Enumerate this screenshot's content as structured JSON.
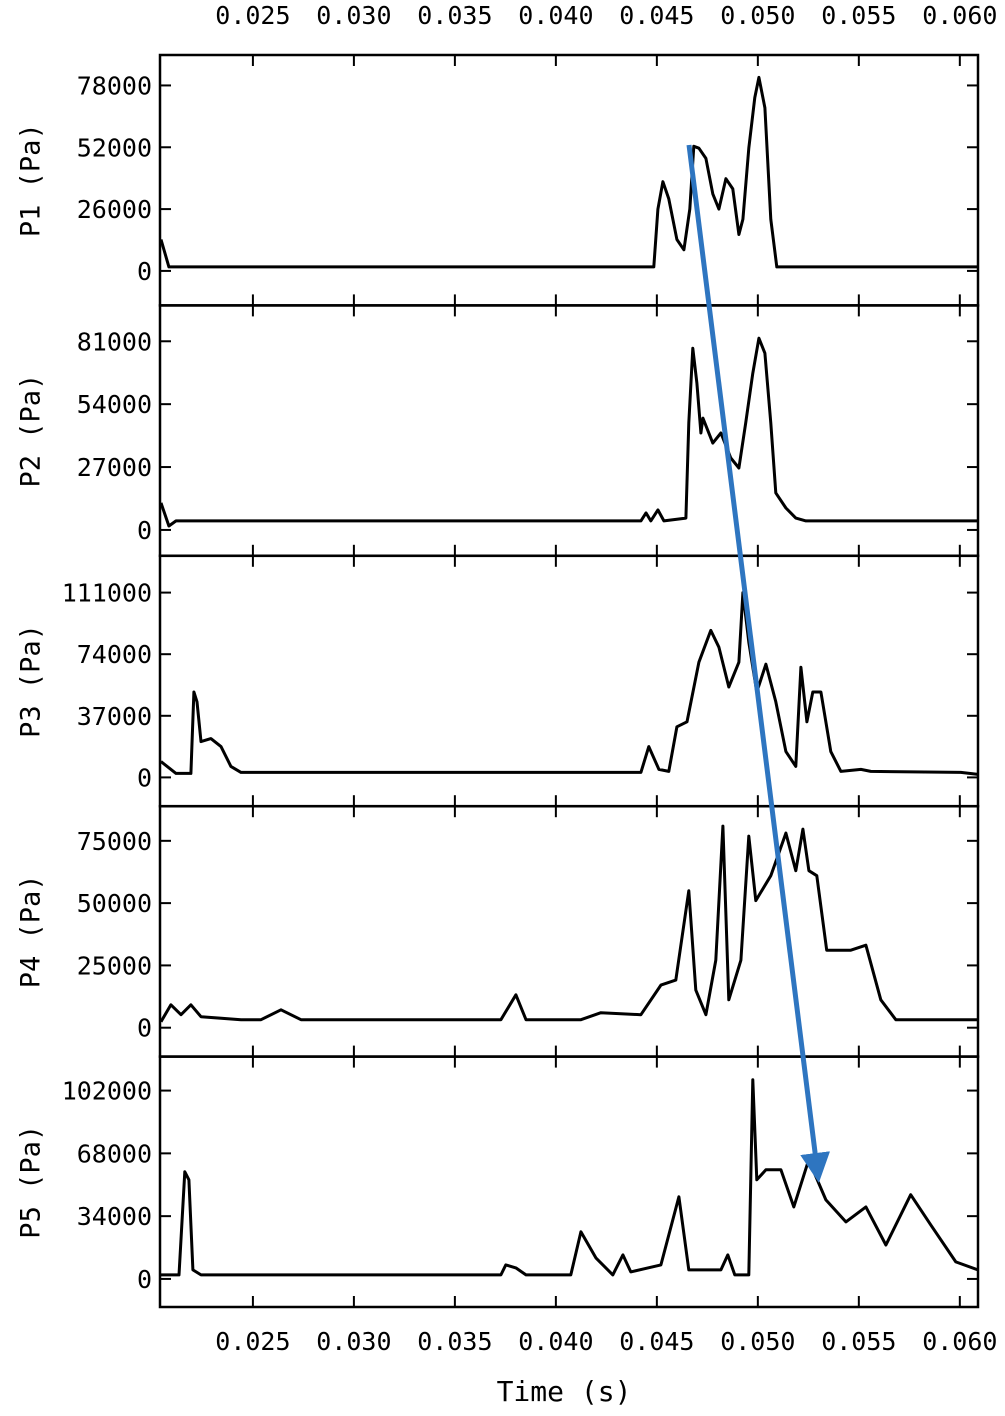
{
  "chart_data": [
    {
      "type": "line",
      "ylabel": "P1 (Pa)",
      "color": "#000000",
      "xlim": [
        0.0204,
        0.0609
      ],
      "xticks": [
        {
          "value": 0.025,
          "label": "0.025"
        },
        {
          "value": 0.03,
          "label": "0.030"
        },
        {
          "value": 0.035,
          "label": "0.035"
        },
        {
          "value": 0.04,
          "label": "0.040"
        },
        {
          "value": 0.045,
          "label": "0.045"
        },
        {
          "value": 0.05,
          "label": "0.050"
        },
        {
          "value": 0.055,
          "label": "0.055"
        },
        {
          "value": 0.06,
          "label": "0.060"
        }
      ],
      "ylim": [
        -14500,
        90800
      ],
      "yticks": [
        0,
        26000,
        52000,
        78000
      ],
      "x": [
        0.02045,
        0.02084,
        0.04485,
        0.04505,
        0.0453,
        0.04559,
        0.04599,
        0.04634,
        0.04663,
        0.04683,
        0.04708,
        0.04743,
        0.04777,
        0.04807,
        0.04842,
        0.04876,
        0.04906,
        0.04926,
        0.04955,
        0.04985,
        0.05005,
        0.05035,
        0.05064,
        0.05094,
        0.0609
      ],
      "values": [
        13200,
        1700,
        1700,
        26000,
        37500,
        30300,
        13200,
        8900,
        26000,
        52400,
        51600,
        47300,
        32400,
        26000,
        38800,
        34500,
        15300,
        21700,
        51600,
        72900,
        81400,
        68600,
        21700,
        1700,
        1700
      ]
    },
    {
      "type": "line",
      "ylabel": "P2 (Pa)",
      "color": "#000000",
      "xlim": [
        0.0204,
        0.0609
      ],
      "xticks": [
        0.025,
        0.03,
        0.035,
        0.04,
        0.045,
        0.05,
        0.055,
        0.06
      ],
      "ylim": [
        -11100,
        96400
      ],
      "yticks": [
        0,
        27000,
        54000,
        81000
      ],
      "x": [
        0.02045,
        0.02084,
        0.02119,
        0.04421,
        0.04446,
        0.0447,
        0.04505,
        0.04535,
        0.04644,
        0.04658,
        0.04678,
        0.04698,
        0.04718,
        0.04728,
        0.04777,
        0.04817,
        0.04866,
        0.04906,
        0.0494,
        0.04975,
        0.05005,
        0.05035,
        0.05064,
        0.05089,
        0.05139,
        0.05188,
        0.05238,
        0.0609
      ],
      "values": [
        11600,
        1700,
        3900,
        3900,
        7300,
        3900,
        8600,
        3900,
        5100,
        45900,
        78000,
        63000,
        41600,
        48000,
        37300,
        41600,
        30900,
        26600,
        45900,
        67300,
        82300,
        75900,
        45900,
        15900,
        9400,
        5100,
        3900,
        3900
      ]
    },
    {
      "type": "line",
      "ylabel": "P3 (Pa)",
      "color": "#000000",
      "xlim": [
        0.0204,
        0.0609
      ],
      "xticks": [
        0.025,
        0.03,
        0.035,
        0.04,
        0.045,
        0.05,
        0.055,
        0.06
      ],
      "ylim": [
        -17300,
        133100
      ],
      "yticks": [
        0,
        37000,
        74000,
        111000
      ],
      "x": [
        0.02045,
        0.02119,
        0.02193,
        0.02208,
        0.02223,
        0.02243,
        0.02292,
        0.02342,
        0.02391,
        0.02441,
        0.04025,
        0.04421,
        0.0446,
        0.0451,
        0.04559,
        0.04599,
        0.04649,
        0.04708,
        0.04767,
        0.04807,
        0.04856,
        0.04906,
        0.04926,
        0.04955,
        0.04995,
        0.0504,
        0.05089,
        0.05139,
        0.05188,
        0.05213,
        0.05243,
        0.05272,
        0.05312,
        0.05361,
        0.05411,
        0.0551,
        0.05559,
        0.06005,
        0.0609
      ],
      "values": [
        9500,
        2400,
        2400,
        51300,
        45400,
        21500,
        23300,
        18500,
        6600,
        3000,
        3000,
        3000,
        18500,
        4800,
        3600,
        30400,
        33400,
        69200,
        88300,
        78200,
        54300,
        69200,
        111000,
        81200,
        51300,
        68000,
        45400,
        15500,
        6600,
        66200,
        33400,
        51300,
        51300,
        15500,
        3600,
        4800,
        3600,
        3000,
        1800
      ]
    },
    {
      "type": "line",
      "ylabel": "P4 (Pa)",
      "color": "#000000",
      "xlim": [
        0.0204,
        0.0609
      ],
      "xticks": [
        0.025,
        0.03,
        0.035,
        0.04,
        0.045,
        0.05,
        0.055,
        0.06
      ],
      "ylim": [
        -11600,
        88900
      ],
      "yticks": [
        0,
        25000,
        50000,
        75000
      ],
      "x": [
        0.02045,
        0.02094,
        0.02144,
        0.02193,
        0.02243,
        0.02441,
        0.0254,
        0.02639,
        0.02738,
        0.03728,
        0.03802,
        0.03852,
        0.04124,
        0.04223,
        0.04421,
        0.0452,
        0.04594,
        0.04658,
        0.04693,
        0.04743,
        0.04792,
        0.04827,
        0.04856,
        0.04916,
        0.04955,
        0.0499,
        0.05064,
        0.05139,
        0.05188,
        0.05223,
        0.05253,
        0.05292,
        0.05341,
        0.0546,
        0.05535,
        0.05609,
        0.05683,
        0.0609
      ],
      "values": [
        2400,
        9200,
        5200,
        9200,
        4400,
        3200,
        3200,
        7200,
        3200,
        3200,
        13200,
        3200,
        3200,
        6000,
        5200,
        17100,
        19100,
        55000,
        15100,
        5200,
        27100,
        80900,
        11200,
        27100,
        76900,
        51000,
        61000,
        78100,
        63000,
        79700,
        63000,
        61000,
        31100,
        31100,
        33100,
        11200,
        3200,
        3200
      ]
    },
    {
      "type": "line",
      "ylabel": "P5 (Pa)",
      "xlabel": "Time (s)",
      "color": "#000000",
      "xlim": [
        0.0204,
        0.0609
      ],
      "xticks": [
        {
          "value": 0.025,
          "label": "0.025"
        },
        {
          "value": 0.03,
          "label": "0.030"
        },
        {
          "value": 0.035,
          "label": "0.035"
        },
        {
          "value": 0.04,
          "label": "0.040"
        },
        {
          "value": 0.045,
          "label": "0.045"
        },
        {
          "value": 0.05,
          "label": "0.050"
        },
        {
          "value": 0.055,
          "label": "0.055"
        },
        {
          "value": 0.06,
          "label": "0.060"
        }
      ],
      "ylim": [
        -15200,
        120400
      ],
      "yticks": [
        0,
        34000,
        68000,
        102000
      ],
      "x": [
        0.02045,
        0.02134,
        0.02163,
        0.02183,
        0.02203,
        0.02243,
        0.03728,
        0.03752,
        0.03802,
        0.03852,
        0.04074,
        0.04124,
        0.04198,
        0.04282,
        0.04332,
        0.04371,
        0.0452,
        0.04609,
        0.04658,
        0.04817,
        0.04851,
        0.04886,
        0.04955,
        0.04975,
        0.04995,
        0.0504,
        0.05114,
        0.05178,
        0.05252,
        0.05337,
        0.05436,
        0.05535,
        0.05634,
        0.05757,
        0.05856,
        0.0598,
        0.0609
      ],
      "values": [
        2200,
        2200,
        58000,
        53700,
        4900,
        2200,
        2200,
        7600,
        6000,
        2200,
        2200,
        25500,
        11400,
        2200,
        13000,
        3800,
        7600,
        44500,
        4900,
        4900,
        13000,
        2200,
        2200,
        107900,
        53700,
        59100,
        59100,
        39000,
        64500,
        42800,
        30900,
        39000,
        18400,
        45600,
        29300,
        9200,
        4900
      ]
    }
  ]
}
